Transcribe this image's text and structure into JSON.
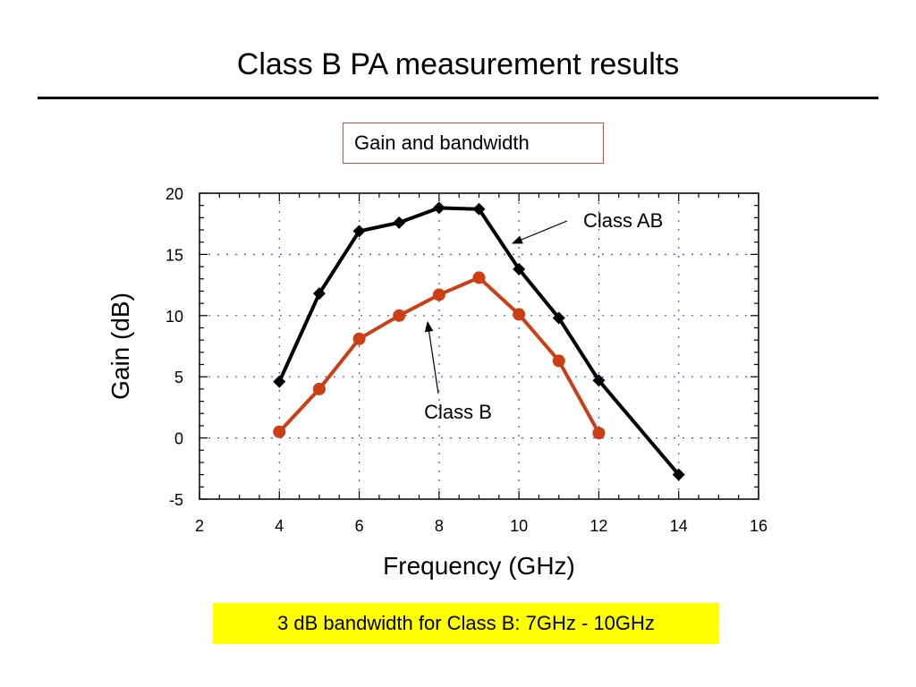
{
  "slide": {
    "title": "Class B PA measurement results",
    "caption": "Gain and bandwidth",
    "note": "3 dB bandwidth for Class B: 7GHz - 10GHz"
  },
  "chart_data": {
    "type": "line",
    "xlabel": "Frequency (GHz)",
    "ylabel": "Gain (dB)",
    "xlim": [
      2,
      16
    ],
    "ylim": [
      -5,
      20
    ],
    "xticks": [
      2,
      4,
      6,
      8,
      10,
      12,
      14,
      16
    ],
    "yticks": [
      -5,
      0,
      5,
      10,
      15,
      20
    ],
    "grid": true,
    "series": [
      {
        "name": "Class AB",
        "color": "#000000",
        "marker": "diamond",
        "x": [
          4,
          5,
          6,
          7,
          8,
          9,
          10,
          11,
          12,
          14
        ],
        "y": [
          4.6,
          11.8,
          16.9,
          17.6,
          18.8,
          18.7,
          13.8,
          9.8,
          4.7,
          -3.0
        ]
      },
      {
        "name": "Class B",
        "color": "#cc3f14",
        "marker": "circle",
        "x": [
          4,
          5,
          6,
          7,
          8,
          9,
          10,
          11,
          12
        ],
        "y": [
          0.5,
          4.0,
          8.1,
          10.0,
          11.7,
          13.1,
          10.1,
          6.3,
          0.4
        ]
      }
    ],
    "annotations": [
      {
        "text": "Class AB",
        "series": "Class AB",
        "point_index": 6
      },
      {
        "text": "Class B",
        "series": "Class B",
        "point_index": 4
      }
    ]
  }
}
